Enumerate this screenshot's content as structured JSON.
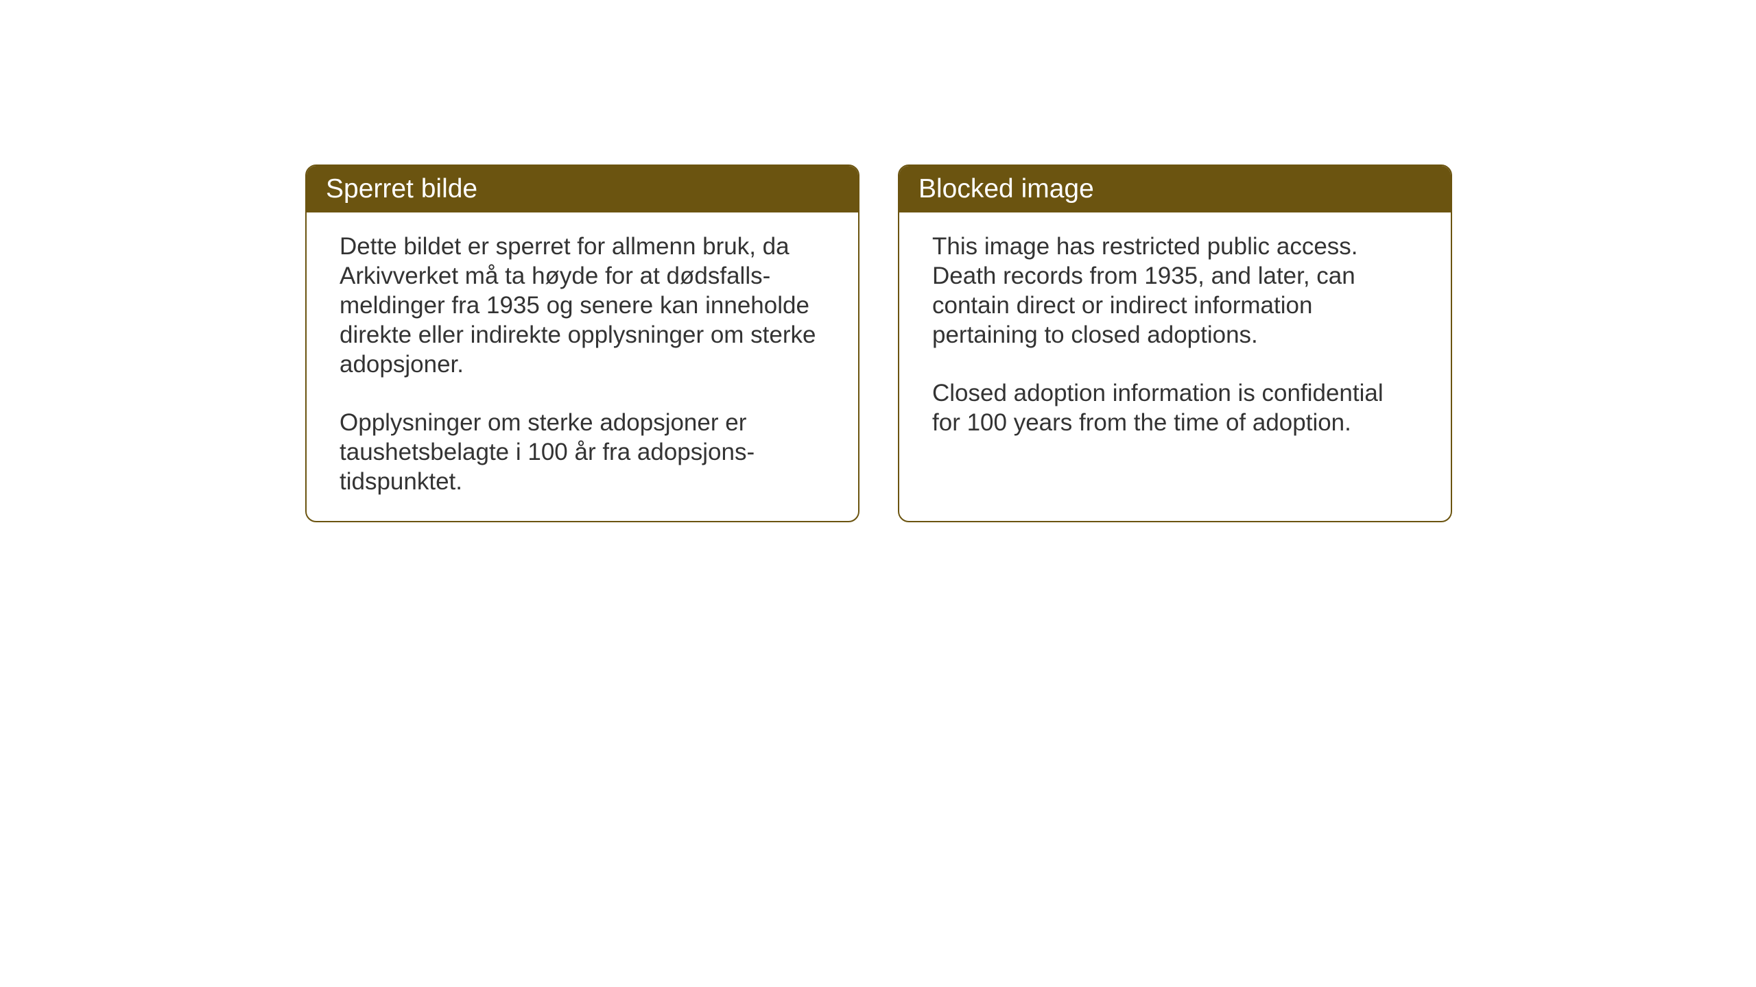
{
  "layout": {
    "background_color": "#ffffff",
    "card_border_color": "#6b5410",
    "card_border_radius": 16,
    "header_background_color": "#6b5410",
    "header_text_color": "#ffffff",
    "body_text_color": "#333333",
    "header_fontsize": 39,
    "body_fontsize": 35
  },
  "cards": {
    "norwegian": {
      "title": "Sperret bilde",
      "paragraph1": "Dette bildet er sperret for allmenn bruk, da Arkivverket må ta høyde for at dødsfalls-meldinger fra 1935 og senere kan inneholde direkte eller indirekte opplysninger om sterke adopsjoner.",
      "paragraph2": "Opplysninger om sterke adopsjoner er taushetsbelagte i 100 år fra adopsjons-tidspunktet."
    },
    "english": {
      "title": "Blocked image",
      "paragraph1": "This image has restricted public access. Death records from 1935, and later, can contain direct or indirect information pertaining to closed adoptions.",
      "paragraph2": "Closed adoption information is confidential for 100 years from the time of adoption."
    }
  }
}
